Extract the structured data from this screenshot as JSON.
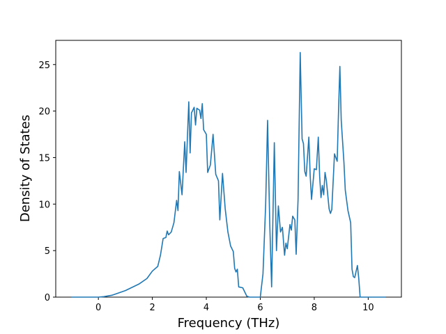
{
  "chart_data": {
    "type": "line",
    "xlabel": "Frequency (THz)",
    "ylabel": "Density of States",
    "xlim": [
      -1.58,
      11.23
    ],
    "ylim": [
      0,
      27.6
    ],
    "xticks": [
      0,
      2,
      4,
      6,
      8,
      10
    ],
    "yticks": [
      0,
      5,
      10,
      15,
      20,
      25
    ],
    "series": [
      {
        "color": "#1f77b4",
        "x": [
          -1,
          0,
          0.2,
          0.5,
          1.0,
          1.5,
          1.8,
          2.0,
          2.2,
          2.3,
          2.4,
          2.5,
          2.55,
          2.6,
          2.7,
          2.8,
          2.9,
          2.95,
          3.0,
          3.1,
          3.2,
          3.25,
          3.35,
          3.4,
          3.45,
          3.55,
          3.6,
          3.65,
          3.75,
          3.8,
          3.85,
          3.9,
          4.0,
          4.05,
          4.15,
          4.25,
          4.35,
          4.45,
          4.5,
          4.6,
          4.7,
          4.8,
          4.9,
          5.0,
          5.05,
          5.1,
          5.15,
          5.2,
          5.35,
          5.5,
          5.6,
          6.0,
          6.1,
          6.2,
          6.27,
          6.35,
          6.42,
          6.52,
          6.6,
          6.67,
          6.75,
          6.82,
          6.9,
          6.95,
          7.0,
          7.1,
          7.15,
          7.2,
          7.28,
          7.33,
          7.4,
          7.48,
          7.55,
          7.6,
          7.65,
          7.7,
          7.8,
          7.85,
          7.9,
          8.0,
          8.08,
          8.15,
          8.2,
          8.25,
          8.3,
          8.35,
          8.4,
          8.45,
          8.55,
          8.6,
          8.65,
          8.75,
          8.85,
          8.9,
          8.95,
          9.0,
          9.1,
          9.15,
          9.25,
          9.35,
          9.4,
          9.45,
          9.5,
          9.6,
          9.65,
          9.7,
          9.75,
          10.65
        ],
        "values": [
          0,
          0,
          0.05,
          0.2,
          0.7,
          1.4,
          2.0,
          2.8,
          3.3,
          4.5,
          6.3,
          6.4,
          7.1,
          6.7,
          7.0,
          8.0,
          10.4,
          9.3,
          13.5,
          11.0,
          16.7,
          13.4,
          21.0,
          15.5,
          19.8,
          20.4,
          18.5,
          20.3,
          20.1,
          19.2,
          20.8,
          18.0,
          17.5,
          13.4,
          14.2,
          17.5,
          13.2,
          12.5,
          8.3,
          13.3,
          9.5,
          7.0,
          5.5,
          4.9,
          3.1,
          2.7,
          3.0,
          1.1,
          1.0,
          0.1,
          0,
          0,
          2.5,
          10.0,
          19.0,
          8.0,
          1.1,
          16.6,
          5.0,
          9.8,
          7.0,
          7.5,
          4.5,
          5.8,
          5.2,
          7.8,
          7.2,
          8.7,
          8.3,
          4.6,
          10.5,
          26.3,
          17.0,
          16.5,
          13.5,
          13.0,
          17.2,
          13.0,
          10.5,
          13.8,
          13.7,
          17.2,
          13.0,
          10.7,
          12.0,
          11.0,
          13.4,
          12.5,
          9.5,
          9.0,
          9.4,
          15.4,
          14.6,
          20.0,
          24.8,
          19.0,
          14.5,
          11.5,
          9.3,
          8.0,
          3.0,
          2.2,
          2.1,
          3.4,
          2.0,
          0,
          0,
          0
        ]
      }
    ]
  }
}
